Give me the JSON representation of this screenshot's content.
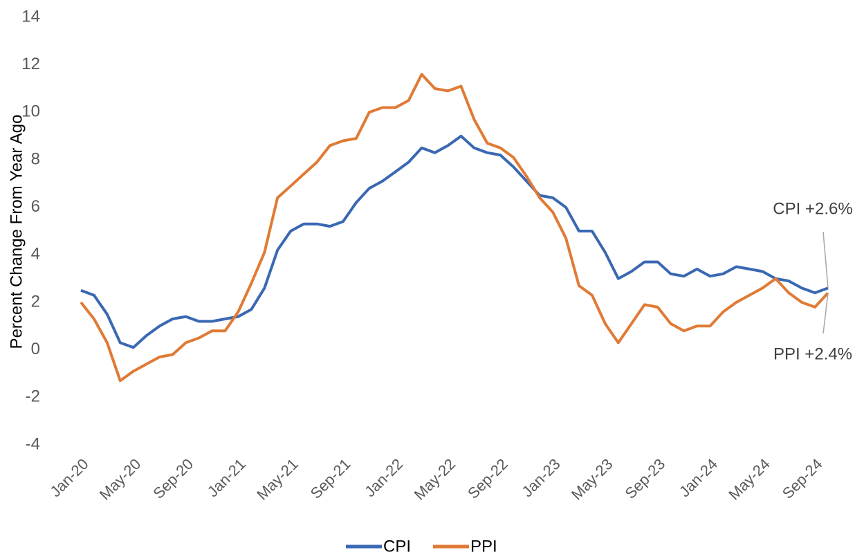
{
  "chart_data": {
    "type": "line",
    "y_label": "Percent Change From Year Ago",
    "categories": [
      "Jan-20",
      null,
      null,
      null,
      "May-20",
      null,
      null,
      null,
      "Sep-20",
      null,
      null,
      null,
      "Jan-21",
      null,
      null,
      null,
      "May-21",
      null,
      null,
      null,
      "Sep-21",
      null,
      null,
      null,
      "Jan-22",
      null,
      null,
      null,
      "May-22",
      null,
      null,
      null,
      "Sep-22",
      null,
      null,
      null,
      "Jan-23",
      null,
      null,
      null,
      "May-23",
      null,
      null,
      null,
      "Sep-23",
      null,
      null,
      null,
      "Jan-24",
      null,
      null,
      null,
      "May-24",
      null,
      null,
      null,
      "Sep-24",
      null
    ],
    "series": [
      {
        "name": "CPI",
        "color": "#3a68b2",
        "values": [
          2.5,
          2.3,
          1.5,
          0.3,
          0.1,
          0.6,
          1.0,
          1.3,
          1.4,
          1.2,
          1.2,
          1.3,
          1.4,
          1.7,
          2.6,
          4.2,
          5.0,
          5.3,
          5.3,
          5.2,
          5.4,
          6.2,
          6.8,
          7.1,
          7.5,
          7.9,
          8.5,
          8.3,
          8.6,
          9.0,
          8.5,
          8.3,
          8.2,
          7.7,
          7.1,
          6.5,
          6.4,
          6.0,
          5.0,
          5.0,
          4.1,
          3.0,
          3.3,
          3.7,
          3.7,
          3.2,
          3.1,
          3.4,
          3.1,
          3.2,
          3.5,
          3.4,
          3.3,
          3.0,
          2.9,
          2.6,
          2.4,
          2.6
        ]
      },
      {
        "name": "PPI",
        "color": "#e07a35",
        "values": [
          2.0,
          1.3,
          0.3,
          -1.3,
          -0.9,
          -0.6,
          -0.3,
          -0.2,
          0.3,
          0.5,
          0.8,
          0.8,
          1.6,
          2.8,
          4.1,
          6.4,
          6.9,
          7.4,
          7.9,
          8.6,
          8.8,
          8.9,
          10.0,
          10.2,
          10.2,
          10.5,
          11.6,
          11.0,
          10.9,
          11.1,
          9.7,
          8.7,
          8.5,
          8.1,
          7.3,
          6.4,
          5.8,
          4.7,
          2.7,
          2.3,
          1.1,
          0.3,
          1.1,
          1.9,
          1.8,
          1.1,
          0.8,
          1.0,
          1.0,
          1.6,
          2.0,
          2.3,
          2.6,
          3.0,
          2.4,
          2.0,
          1.8,
          2.4
        ]
      }
    ],
    "annotations": [
      "CPI +2.6%",
      "PPI +2.4%"
    ],
    "ylim": [
      -4,
      14
    ],
    "yticks": [
      -4,
      -2,
      0,
      2,
      4,
      6,
      8,
      10,
      12,
      14
    ],
    "grid": false,
    "legend": "bottom"
  }
}
